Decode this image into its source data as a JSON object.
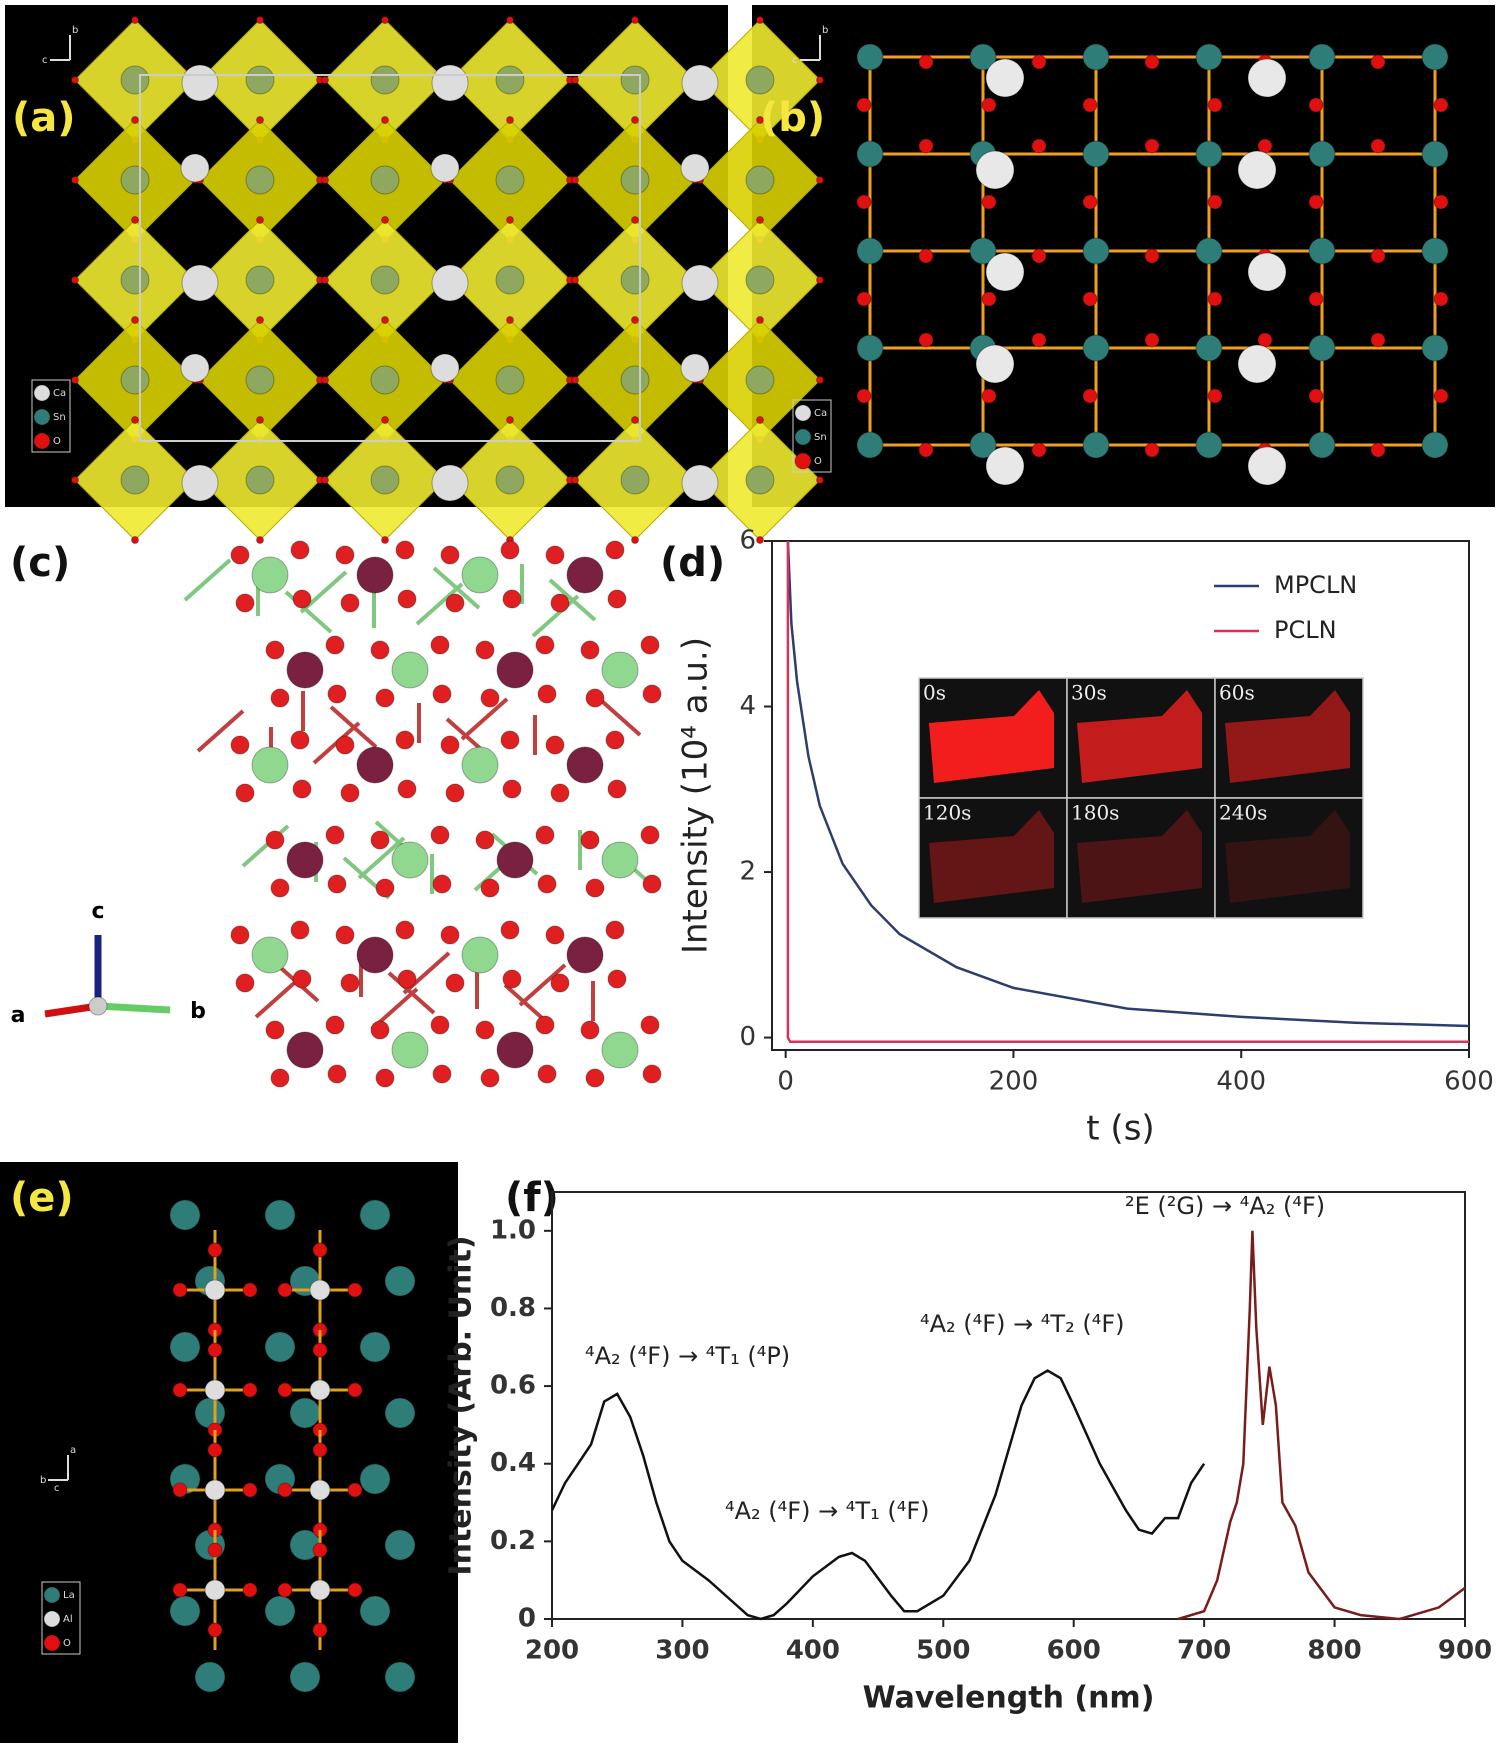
{
  "panels": {
    "a": {
      "label": "(a)",
      "axes": [
        "b",
        "c"
      ],
      "legend": [
        "Ca",
        "Sn",
        "O"
      ]
    },
    "b": {
      "label": "(b)",
      "axes": [
        "b",
        "c"
      ],
      "legend": [
        "Ca",
        "Sn",
        "O"
      ]
    },
    "c": {
      "label": "(c)",
      "axes": [
        "c",
        "a",
        "b"
      ]
    },
    "e": {
      "label": "(e)",
      "axes": [
        "a",
        "b",
        "c"
      ],
      "legend": [
        "La",
        "Al",
        "O"
      ]
    }
  },
  "chart_data": [
    {
      "type": "line",
      "panel_label": "(d)",
      "xlabel": "t (s)",
      "ylabel": "Intensity (10⁴ a.u.)",
      "xlim": [
        -12,
        600
      ],
      "ylim": [
        -0.15,
        6
      ],
      "xticks": [
        0,
        200,
        400,
        600
      ],
      "yticks": [
        0,
        2,
        4,
        6
      ],
      "legend": "upper right",
      "inset_labels": [
        "0s",
        "30s",
        "60s",
        "120s",
        "180s",
        "240s"
      ],
      "series": [
        {
          "name": "MPCLN",
          "color": "#2c3e6e",
          "x": [
            2,
            5,
            10,
            20,
            30,
            50,
            75,
            100,
            150,
            200,
            300,
            400,
            500,
            600
          ],
          "values": [
            6,
            5,
            4.3,
            3.4,
            2.8,
            2.1,
            1.6,
            1.25,
            0.85,
            0.6,
            0.35,
            0.25,
            0.18,
            0.14
          ]
        },
        {
          "name": "PCLN",
          "color": "#d6325a",
          "x": [
            2,
            2,
            4,
            600
          ],
          "values": [
            6,
            0,
            -0.05,
            -0.05
          ]
        }
      ]
    },
    {
      "type": "line",
      "panel_label": "(f)",
      "xlabel": "Wavelength (nm)",
      "ylabel": "Intensity (Arb. Unit)",
      "xlim": [
        200,
        900
      ],
      "ylim": [
        0,
        1.1
      ],
      "xticks": [
        200,
        300,
        400,
        500,
        600,
        700,
        800,
        900
      ],
      "yticks": [
        0,
        0.2,
        0.4,
        0.6,
        0.8,
        {
          "value": 1,
          "label": "1.0"
        }
      ],
      "annotations": [
        "⁴A₂ (⁴F) → ⁴T₁ (⁴P)",
        "⁴A₂ (⁴F) → ⁴T₁ (⁴F)",
        "⁴A₂ (⁴F) → ⁴T₂ (⁴F)",
        "²E (²G) → ⁴A₂ (⁴F)"
      ],
      "series": [
        {
          "color": "#111111",
          "x": [
            200,
            210,
            220,
            230,
            240,
            250,
            260,
            270,
            280,
            290,
            300,
            320,
            340,
            350,
            360,
            370,
            380,
            400,
            420,
            430,
            440,
            460,
            470,
            480,
            500,
            520,
            540,
            560,
            570,
            580,
            590,
            600,
            620,
            640,
            650,
            660,
            670,
            680,
            690,
            700
          ],
          "values": [
            0.28,
            0.35,
            0.4,
            0.45,
            0.56,
            0.58,
            0.52,
            0.42,
            0.3,
            0.2,
            0.15,
            0.1,
            0.04,
            0.01,
            0,
            0.01,
            0.04,
            0.11,
            0.16,
            0.17,
            0.15,
            0.06,
            0.02,
            0.02,
            0.06,
            0.15,
            0.32,
            0.55,
            0.62,
            0.64,
            0.62,
            0.55,
            0.4,
            0.28,
            0.23,
            0.22,
            0.26,
            0.26,
            0.35,
            0.4
          ]
        },
        {
          "color": "#7a1c1c",
          "x": [
            680,
            700,
            710,
            720,
            725,
            730,
            735,
            737,
            740,
            745,
            750,
            755,
            760,
            770,
            780,
            800,
            820,
            850,
            880,
            900
          ],
          "values": [
            0,
            0.02,
            0.1,
            0.25,
            0.3,
            0.4,
            0.8,
            1,
            0.75,
            0.5,
            0.65,
            0.55,
            0.3,
            0.24,
            0.12,
            0.03,
            0.01,
            0,
            0.03,
            0.08
          ]
        }
      ]
    }
  ]
}
